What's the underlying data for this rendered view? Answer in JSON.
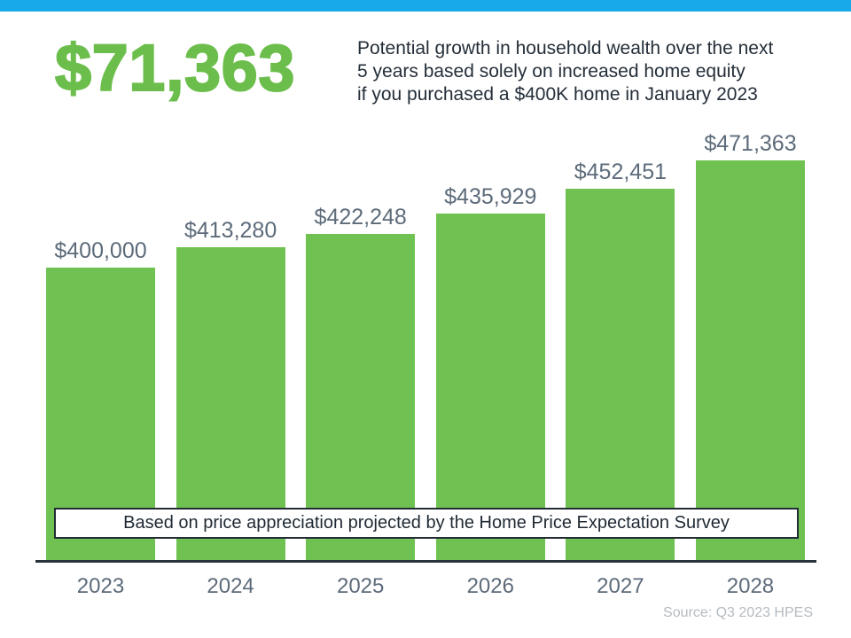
{
  "header": {
    "highlight_value": "$71,363",
    "description_lines": [
      "Potential growth in household wealth over the next",
      "5 years based solely on increased home equity",
      "if you purchased a $400K home in January 2023"
    ]
  },
  "chart_data": {
    "type": "bar",
    "title": "Potential growth in household wealth over the next 5 years based solely on increased home equity if you purchased a $400K home in January 2023",
    "categories": [
      "2023",
      "2024",
      "2025",
      "2026",
      "2027",
      "2028"
    ],
    "values": [
      400000,
      413280,
      422248,
      435929,
      452451,
      471363
    ],
    "value_labels": [
      "$400,000",
      "$413,280",
      "$422,248",
      "$435,929",
      "$452,451",
      "$471,363"
    ],
    "xlabel": "",
    "ylabel": "",
    "ylim": [
      205000,
      480000
    ],
    "grid": false,
    "legend": false,
    "bar_color": "#6FC251"
  },
  "note": "Based on price appreciation projected by the Home Price Expectation Survey",
  "source": "Source: Q3 2023 HPES",
  "colors": {
    "accent_bar": "#17A9EA",
    "highlight_green": "#6CBE4C",
    "bar_green": "#6FC251",
    "label_slate": "#5D6B7A",
    "text_dark": "#242E39",
    "source_gray": "#B5BBC1"
  }
}
